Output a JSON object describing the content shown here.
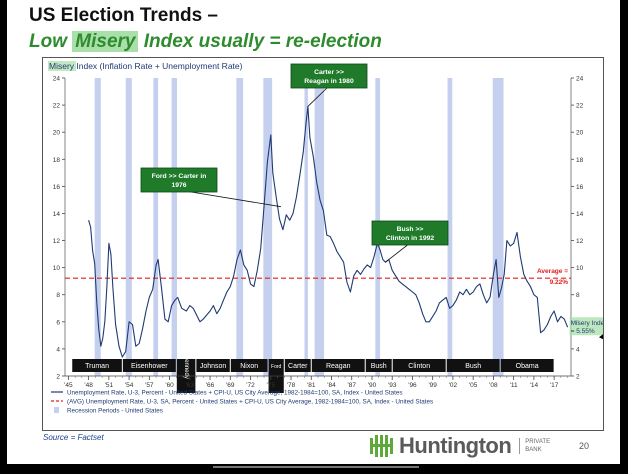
{
  "slide": {
    "title_line1": "US Election Trends –",
    "title_line2_before": "Low ",
    "title_line2_highlight": "Misery",
    "title_line2_after": " Index usually = re-election",
    "source": "Source = Factset",
    "brand_name": "Huntington",
    "brand_sub": "PRIVATE\nBANK",
    "page_number": "20",
    "colors": {
      "title_green": "#2e8b2e",
      "highlight": "#a9dfa9",
      "series": "#1f3b73",
      "average": "#e02020",
      "recession": "#c5cfee",
      "callout": "#1f7a2a"
    }
  },
  "chart_data": {
    "type": "line",
    "title": "Misery Index (Inflation Rate + Unemployment Rate)",
    "title_highlight": "Misery",
    "title_rest": " Index (Inflation Rate + Unemployment Rate)",
    "ylim": [
      2,
      24
    ],
    "yticks": [
      "2",
      "4",
      "6",
      "8",
      "10",
      "12",
      "14",
      "16",
      "18",
      "20",
      "22",
      "24"
    ],
    "xlim": [
      1944.5,
      2019.5
    ],
    "xticks": [
      "'45",
      "'48",
      "'51",
      "'54",
      "'57",
      "'60",
      "'63",
      "'66",
      "'69",
      "'72",
      "'75",
      "'78",
      "'81",
      "'84",
      "'87",
      "'90",
      "'93",
      "'96",
      "'99",
      "'02",
      "'05",
      "'08",
      "'11",
      "'14",
      "'17"
    ],
    "recessions": [
      [
        1948.9,
        1949.8
      ],
      [
        1953.5,
        1954.4
      ],
      [
        1957.6,
        1958.3
      ],
      [
        1960.3,
        1961.1
      ],
      [
        1969.9,
        1970.9
      ],
      [
        1973.9,
        1975.2
      ],
      [
        1980.0,
        1980.5
      ],
      [
        1981.5,
        1982.9
      ],
      [
        1990.5,
        1991.2
      ],
      [
        2001.2,
        2001.9
      ],
      [
        2007.9,
        2009.5
      ]
    ],
    "average": {
      "value": 9.22,
      "label": "Average =",
      "value_label": "9.22%"
    },
    "latest": {
      "label": "Misery Index",
      "value_label": "= 5.55%"
    },
    "series": [
      {
        "name": "Misery Index",
        "points": [
          [
            1948.0,
            13.5
          ],
          [
            1948.3,
            13.0
          ],
          [
            1948.6,
            11.2
          ],
          [
            1948.9,
            10.3
          ],
          [
            1949.2,
            7.5
          ],
          [
            1949.5,
            5.5
          ],
          [
            1949.8,
            4.2
          ],
          [
            1950.1,
            4.8
          ],
          [
            1950.4,
            6.0
          ],
          [
            1950.7,
            8.5
          ],
          [
            1951.0,
            11.8
          ],
          [
            1951.3,
            11.0
          ],
          [
            1951.6,
            8.5
          ],
          [
            1952.0,
            5.8
          ],
          [
            1952.5,
            4.2
          ],
          [
            1953.0,
            3.4
          ],
          [
            1953.5,
            3.8
          ],
          [
            1954.0,
            6.0
          ],
          [
            1954.5,
            5.8
          ],
          [
            1955.0,
            4.2
          ],
          [
            1955.5,
            4.4
          ],
          [
            1956.0,
            5.5
          ],
          [
            1956.5,
            6.8
          ],
          [
            1957.0,
            7.8
          ],
          [
            1957.5,
            8.4
          ],
          [
            1958.0,
            10.2
          ],
          [
            1958.3,
            10.6
          ],
          [
            1958.8,
            8.5
          ],
          [
            1959.3,
            6.2
          ],
          [
            1959.8,
            6.0
          ],
          [
            1960.3,
            7.2
          ],
          [
            1960.8,
            7.6
          ],
          [
            1961.2,
            7.8
          ],
          [
            1961.8,
            7.0
          ],
          [
            1962.5,
            6.8
          ],
          [
            1963.0,
            7.2
          ],
          [
            1963.5,
            7.0
          ],
          [
            1964.0,
            6.5
          ],
          [
            1964.5,
            6.0
          ],
          [
            1965.0,
            6.2
          ],
          [
            1965.5,
            6.5
          ],
          [
            1966.0,
            6.8
          ],
          [
            1966.5,
            7.2
          ],
          [
            1967.0,
            6.6
          ],
          [
            1967.5,
            7.0
          ],
          [
            1968.0,
            7.6
          ],
          [
            1968.5,
            8.2
          ],
          [
            1969.0,
            8.6
          ],
          [
            1969.5,
            9.4
          ],
          [
            1970.0,
            10.6
          ],
          [
            1970.5,
            11.3
          ],
          [
            1971.0,
            10.2
          ],
          [
            1971.5,
            9.8
          ],
          [
            1972.0,
            8.8
          ],
          [
            1972.5,
            8.6
          ],
          [
            1973.0,
            9.8
          ],
          [
            1973.5,
            11.4
          ],
          [
            1974.0,
            14.5
          ],
          [
            1974.5,
            17.8
          ],
          [
            1975.0,
            19.8
          ],
          [
            1975.3,
            17.0
          ],
          [
            1975.8,
            15.2
          ],
          [
            1976.3,
            13.6
          ],
          [
            1976.8,
            12.8
          ],
          [
            1977.3,
            13.9
          ],
          [
            1977.8,
            13.5
          ],
          [
            1978.3,
            14.0
          ],
          [
            1978.8,
            15.2
          ],
          [
            1979.3,
            16.8
          ],
          [
            1979.8,
            18.5
          ],
          [
            1980.2,
            20.6
          ],
          [
            1980.5,
            21.9
          ],
          [
            1980.8,
            19.6
          ],
          [
            1981.3,
            18.2
          ],
          [
            1981.8,
            16.3
          ],
          [
            1982.3,
            15.0
          ],
          [
            1982.8,
            14.2
          ],
          [
            1983.3,
            12.4
          ],
          [
            1983.8,
            12.3
          ],
          [
            1984.3,
            11.8
          ],
          [
            1984.8,
            11.2
          ],
          [
            1985.3,
            10.8
          ],
          [
            1985.8,
            10.4
          ],
          [
            1986.3,
            8.9
          ],
          [
            1986.8,
            8.2
          ],
          [
            1987.3,
            9.4
          ],
          [
            1987.8,
            9.8
          ],
          [
            1988.3,
            9.5
          ],
          [
            1988.8,
            9.9
          ],
          [
            1989.3,
            10.2
          ],
          [
            1989.8,
            10.0
          ],
          [
            1990.3,
            10.8
          ],
          [
            1990.8,
            11.8
          ],
          [
            1991.2,
            11.3
          ],
          [
            1991.6,
            10.6
          ],
          [
            1992.0,
            10.4
          ],
          [
            1992.5,
            10.6
          ],
          [
            1993.0,
            9.8
          ],
          [
            1993.5,
            9.4
          ],
          [
            1994.0,
            9.0
          ],
          [
            1994.5,
            8.8
          ],
          [
            1995.0,
            8.6
          ],
          [
            1995.5,
            8.4
          ],
          [
            1996.0,
            8.2
          ],
          [
            1996.5,
            8.0
          ],
          [
            1997.0,
            7.4
          ],
          [
            1997.5,
            6.6
          ],
          [
            1998.0,
            6.0
          ],
          [
            1998.5,
            6.0
          ],
          [
            1999.0,
            6.4
          ],
          [
            1999.5,
            6.8
          ],
          [
            2000.0,
            7.4
          ],
          [
            2000.5,
            7.6
          ],
          [
            2001.0,
            7.8
          ],
          [
            2001.5,
            7.0
          ],
          [
            2002.0,
            7.2
          ],
          [
            2002.5,
            7.6
          ],
          [
            2003.0,
            8.2
          ],
          [
            2003.5,
            8.0
          ],
          [
            2004.0,
            8.4
          ],
          [
            2004.5,
            8.0
          ],
          [
            2005.0,
            8.2
          ],
          [
            2005.5,
            8.6
          ],
          [
            2006.0,
            8.8
          ],
          [
            2006.5,
            8.0
          ],
          [
            2007.0,
            7.4
          ],
          [
            2007.5,
            7.8
          ],
          [
            2008.0,
            9.5
          ],
          [
            2008.4,
            10.6
          ],
          [
            2008.8,
            7.8
          ],
          [
            2009.2,
            8.5
          ],
          [
            2009.6,
            9.5
          ],
          [
            2010.0,
            12.0
          ],
          [
            2010.5,
            11.6
          ],
          [
            2011.0,
            11.8
          ],
          [
            2011.5,
            12.6
          ],
          [
            2012.0,
            10.8
          ],
          [
            2012.5,
            9.5
          ],
          [
            2013.0,
            9.0
          ],
          [
            2013.5,
            8.6
          ],
          [
            2014.0,
            8.0
          ],
          [
            2014.5,
            7.8
          ],
          [
            2015.0,
            5.2
          ],
          [
            2015.5,
            5.4
          ],
          [
            2016.0,
            5.8
          ],
          [
            2016.5,
            6.4
          ],
          [
            2017.0,
            6.8
          ],
          [
            2017.5,
            6.0
          ],
          [
            2018.0,
            6.4
          ],
          [
            2018.5,
            6.2
          ],
          [
            2019.0,
            5.6
          ]
        ]
      }
    ],
    "legend": [
      {
        "label": "Unemployment Rate, U-3, Percent - United States + CPI-U, US City Average, 1982-1984=100, SA, Index - United States"
      },
      {
        "label": "(AVG) Unemployment Rate, U-3, SA, Percent - United States + CPI-U, US City Average, 1982-1984=100, SA, Index - United States"
      },
      {
        "label": "Recession Periods - United States"
      }
    ],
    "presidents": [
      {
        "name": "Truman",
        "start": 1945.5,
        "end": 1953.0
      },
      {
        "name": "Eisenhower",
        "start": 1953.0,
        "end": 1961.0
      },
      {
        "name": "Kennedy",
        "start": 1961.0,
        "end": 1963.9
      },
      {
        "name": "Johnson",
        "start": 1963.9,
        "end": 1969.0
      },
      {
        "name": "Nixon",
        "start": 1969.0,
        "end": 1974.6
      },
      {
        "name": "Ford",
        "start": 1974.6,
        "end": 1977.0
      },
      {
        "name": "Carter",
        "start": 1977.0,
        "end": 1981.0
      },
      {
        "name": "Reagan",
        "start": 1981.0,
        "end": 1989.0
      },
      {
        "name": "Bush",
        "start": 1989.0,
        "end": 1993.0
      },
      {
        "name": "Clinton",
        "start": 1993.0,
        "end": 2001.0
      },
      {
        "name": "Bush",
        "start": 2001.0,
        "end": 2009.0
      },
      {
        "name": "Obama",
        "start": 2009.0,
        "end": 2017.0
      }
    ],
    "callouts": [
      {
        "name": "callout-ford-carter",
        "line1": "Ford >> Carter in",
        "line2": "1976",
        "x": 1976.5,
        "y": 14.5
      },
      {
        "name": "callout-carter-reagan",
        "line1": "Carter >>",
        "line2": "Reagan in 1980",
        "x": 1980.5,
        "y": 21.9
      },
      {
        "name": "callout-bush-clinton",
        "line1": "Bush >>",
        "line2": "Clinton in 1992",
        "x": 1992.0,
        "y": 10.4
      }
    ]
  }
}
